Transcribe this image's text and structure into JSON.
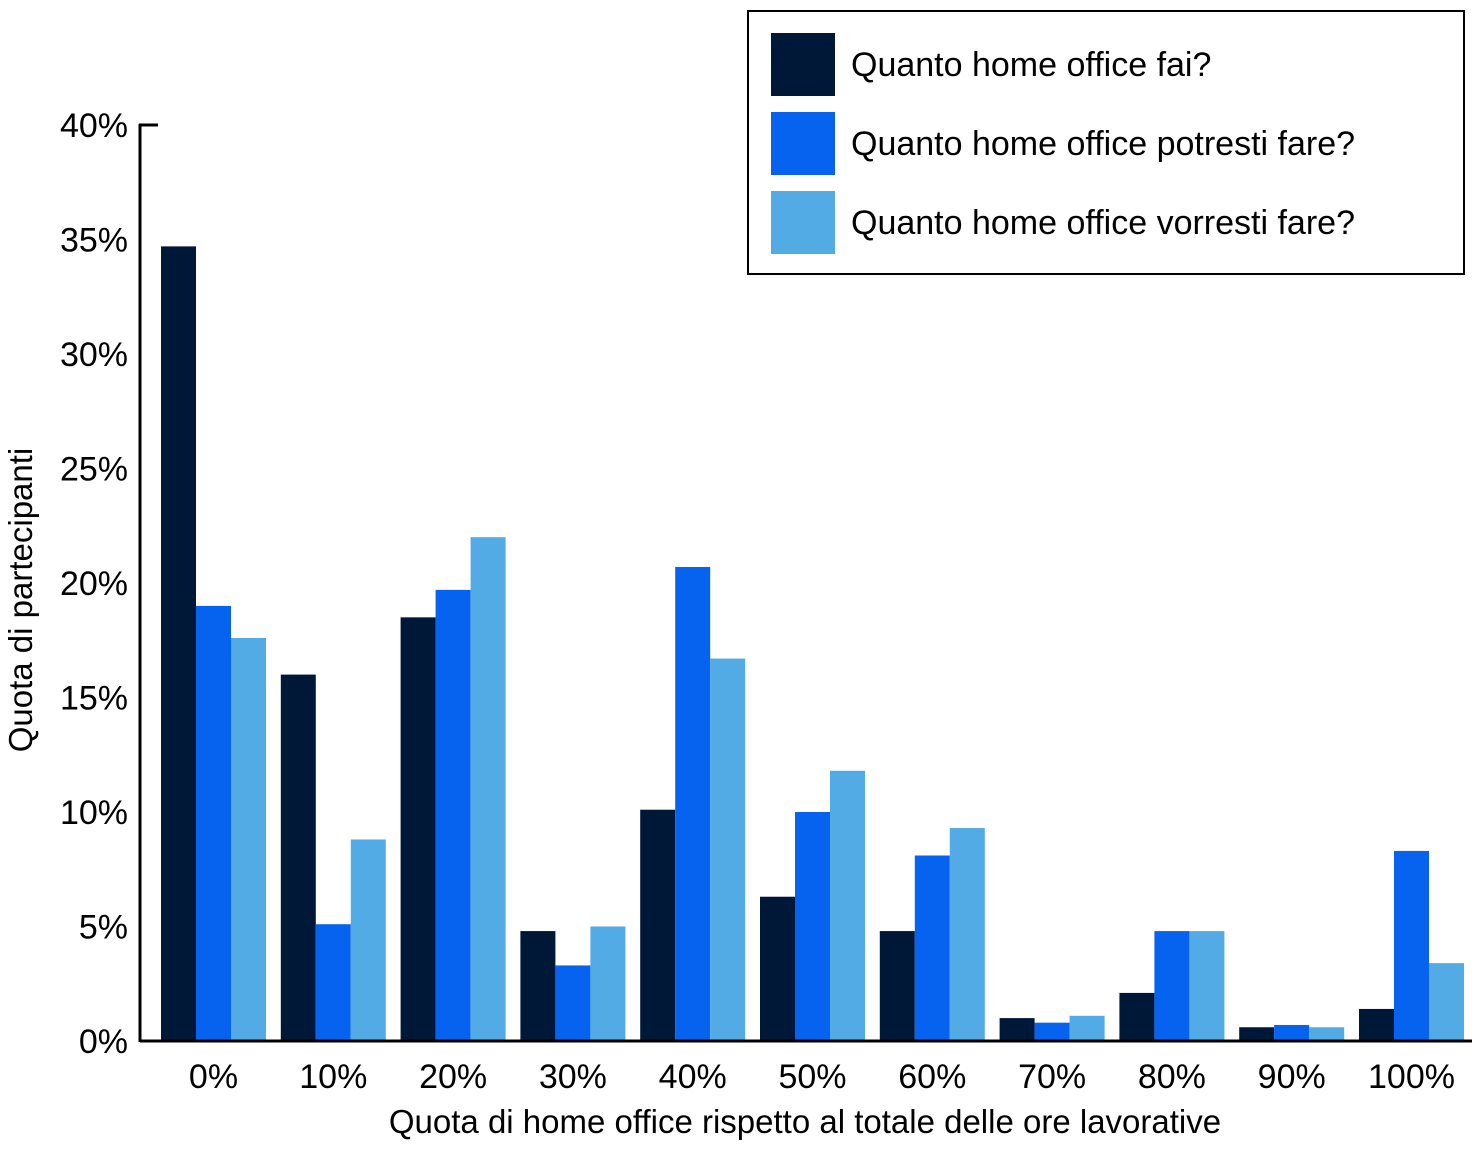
{
  "chart_data": {
    "type": "bar",
    "xlabel": "Quota di home office rispetto al totale delle ore lavorative",
    "ylabel": "Quota di partecipanti",
    "ylim": [
      0,
      40
    ],
    "yticks": [
      "0%",
      "5%",
      "10%",
      "15%",
      "20%",
      "25%",
      "30%",
      "35%",
      "40%"
    ],
    "categories": [
      "0%",
      "10%",
      "20%",
      "30%",
      "40%",
      "50%",
      "60%",
      "70%",
      "80%",
      "90%",
      "100%"
    ],
    "legend_position": "top-right",
    "grid": false,
    "series": [
      {
        "name": "Quanto home office fai?",
        "color": "#001838",
        "values": [
          34.7,
          16.0,
          18.5,
          4.8,
          10.1,
          6.3,
          4.8,
          1.0,
          2.1,
          0.6,
          1.4
        ]
      },
      {
        "name": "Quanto home office potresti fare?",
        "color": "#0563f0",
        "values": [
          19.0,
          5.1,
          19.7,
          3.3,
          20.7,
          10.0,
          8.1,
          0.8,
          4.8,
          0.7,
          8.3
        ]
      },
      {
        "name": "Quanto home office vorresti fare?",
        "color": "#52abe4",
        "values": [
          17.6,
          8.8,
          22.0,
          5.0,
          16.7,
          11.8,
          9.3,
          1.1,
          4.8,
          0.6,
          3.4
        ]
      }
    ]
  }
}
